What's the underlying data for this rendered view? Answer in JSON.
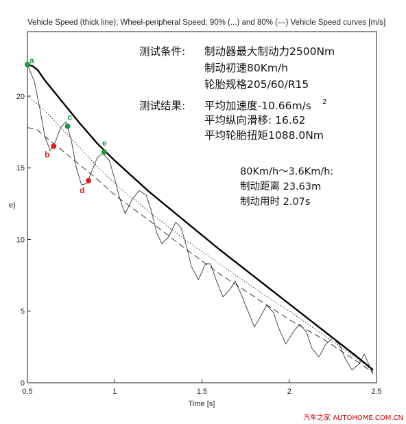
{
  "chart_data": {
    "type": "line",
    "title": "Vehicle Speed (thick line); Wheel-peripheral Speed; 90% (...) and 80% (---) Vehicle Speed curves [m/s]",
    "xlabel": "Time [s]",
    "ylabel": "e)",
    "xlim": [
      0.5,
      2.5
    ],
    "ylim": [
      0,
      24.5
    ],
    "xticks": [
      "0.5",
      "1",
      "1.5",
      "2",
      "2.5"
    ],
    "yticks": [
      "0",
      "5",
      "10",
      "15",
      "20"
    ],
    "xtick_values": [
      0.5,
      1,
      1.5,
      2,
      2.5
    ],
    "ytick_values": [
      0,
      5,
      10,
      15,
      20
    ],
    "grid": false,
    "series": [
      {
        "style": "thick",
        "x": [
          0.5,
          0.53,
          0.56,
          0.6,
          0.7,
          0.8,
          0.9,
          1.0,
          1.2,
          1.4,
          1.6,
          1.8,
          2.0,
          2.2,
          2.4,
          2.48
        ],
        "y": [
          22.2,
          22.1,
          21.8,
          21.1,
          19.6,
          18.1,
          16.7,
          15.5,
          13.3,
          11.3,
          9.3,
          7.4,
          5.5,
          3.6,
          1.7,
          0.9
        ]
      },
      {
        "style": "thin",
        "x": [
          0.5,
          0.54,
          0.57,
          0.6,
          0.63,
          0.66,
          0.69,
          0.72,
          0.75,
          0.78,
          0.81,
          0.84,
          0.87,
          0.9,
          0.93,
          0.97,
          1.0,
          1.03,
          1.06,
          1.1,
          1.14,
          1.18,
          1.21,
          1.24,
          1.27,
          1.31,
          1.35,
          1.38,
          1.41,
          1.44,
          1.48,
          1.52,
          1.55,
          1.58,
          1.62,
          1.66,
          1.69,
          1.72,
          1.76,
          1.8,
          1.83,
          1.87,
          1.91,
          1.94,
          1.98,
          2.02,
          2.06,
          2.1,
          2.13,
          2.17,
          2.21,
          2.25,
          2.29,
          2.32,
          2.36,
          2.4,
          2.43,
          2.48
        ],
        "y": [
          22.2,
          21.0,
          19.2,
          17.2,
          16.2,
          16.8,
          17.8,
          18.2,
          17.0,
          15.0,
          13.8,
          13.9,
          14.8,
          15.7,
          16.0,
          15.5,
          14.2,
          12.8,
          11.8,
          12.8,
          13.4,
          13.1,
          12.0,
          10.5,
          9.7,
          10.2,
          11.2,
          10.8,
          9.6,
          8.1,
          7.2,
          8.3,
          8.3,
          7.2,
          6.0,
          6.5,
          7.1,
          6.3,
          5.1,
          3.9,
          4.5,
          5.4,
          4.9,
          3.8,
          2.7,
          3.5,
          4.1,
          3.5,
          2.4,
          1.8,
          2.7,
          3.1,
          2.6,
          1.7,
          0.9,
          1.3,
          2.0,
          0.6
        ]
      },
      {
        "style": "dotted",
        "x": [
          0.5,
          0.6,
          0.7,
          0.8,
          0.9,
          1.0,
          1.2,
          1.4,
          1.6,
          1.8,
          2.0,
          2.2,
          2.4,
          2.48
        ],
        "y": [
          20.0,
          19.0,
          17.7,
          16.4,
          15.1,
          13.9,
          11.9,
          10.0,
          8.3,
          6.6,
          5.0,
          3.3,
          1.6,
          0.8
        ]
      },
      {
        "style": "dashed",
        "x": [
          0.5,
          0.55,
          0.6,
          0.7,
          0.8,
          0.9,
          1.0,
          1.2,
          1.4,
          1.6,
          1.8,
          2.0,
          2.2,
          2.4,
          2.48
        ],
        "y": [
          17.8,
          17.7,
          17.2,
          16.2,
          15.2,
          14.2,
          13.1,
          11.3,
          9.4,
          7.6,
          6.0,
          4.4,
          3.0,
          1.4,
          0.7
        ]
      }
    ],
    "points": [
      {
        "label": "a",
        "x": 0.5,
        "y": 22.2,
        "color": "#1a9a3c"
      },
      {
        "label": "b",
        "x": 0.65,
        "y": 16.5,
        "color": "#dd2222"
      },
      {
        "label": "c",
        "x": 0.73,
        "y": 17.9,
        "color": "#1a9a3c"
      },
      {
        "label": "d",
        "x": 0.85,
        "y": 14.1,
        "color": "#dd2222"
      },
      {
        "label": "e",
        "x": 0.94,
        "y": 16.1,
        "color": "#1a9a3c"
      }
    ],
    "annotations": {
      "conditions_label": "测试条件:",
      "conditions": [
        "制动器最大制动力2500Nm",
        "制动初速80Km/h",
        "轮胎规格205/60/R15"
      ],
      "results_label": "测试结果:",
      "results": [
        "平均加速度-10.66m/s",
        "平均纵向滑移:  16.62",
        "平均轮胎扭矩1088.0Nm"
      ],
      "accel_superscript": "2",
      "range_label": "80Km/h～3.6Km/h:",
      "range_lines": [
        "制动距离 23.63m",
        "制动用时 2.07s"
      ]
    },
    "watermark": "汽车之家 AUTOHOME.COM.CN"
  }
}
